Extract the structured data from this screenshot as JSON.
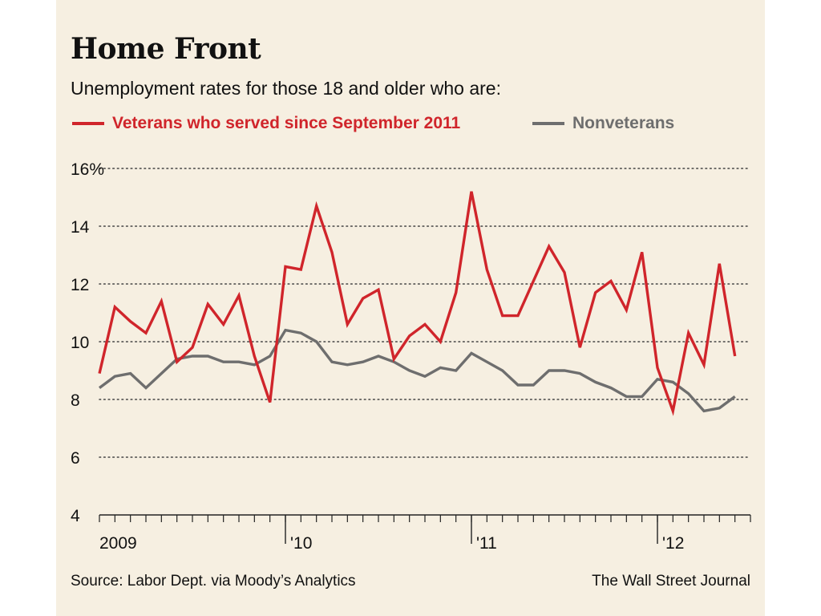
{
  "header": {
    "title": "Home Front",
    "subtitle": "Unemployment rates for those 18 and older who are:"
  },
  "footer": {
    "source": "Source: Labor Dept. via Moody’s Analytics",
    "credit": "The Wall Street Journal"
  },
  "colors": {
    "veterans": "#d0252b",
    "nonveterans": "#6e6e6e",
    "background": "#f6efe1"
  },
  "chart_data": {
    "type": "line",
    "title": "Home Front",
    "subtitle": "Unemployment rates for those 18 and older who are:",
    "x_unit": "month",
    "x_start": "2009-01",
    "x_end": "2012-07",
    "x_ticks": [
      {
        "date": "2009-01",
        "label": "2009"
      },
      {
        "date": "2010-01",
        "label": "'10"
      },
      {
        "date": "2011-01",
        "label": "'11"
      },
      {
        "date": "2012-01",
        "label": "'12"
      }
    ],
    "ylim": [
      4,
      16
    ],
    "y_ticks": [
      4,
      6,
      8,
      10,
      12,
      14,
      16
    ],
    "y_tick_labels": [
      "4",
      "6",
      "8",
      "10",
      "12",
      "14",
      "16%"
    ],
    "grid": "horizontal dotted",
    "legend": "top",
    "series": [
      {
        "name": "Veterans who served since September 2011",
        "color": "#d0252b",
        "values": [
          8.9,
          11.2,
          10.7,
          10.3,
          11.4,
          9.3,
          9.8,
          11.3,
          10.6,
          11.6,
          9.5,
          7.9,
          12.6,
          12.5,
          14.7,
          13.1,
          10.6,
          11.5,
          11.8,
          9.4,
          10.2,
          10.6,
          10.0,
          11.7,
          15.2,
          12.5,
          10.9,
          10.9,
          12.1,
          13.3,
          12.4,
          9.8,
          11.7,
          12.1,
          11.1,
          13.1,
          9.1,
          7.6,
          10.3,
          9.2,
          12.7,
          9.5
        ]
      },
      {
        "name": "Nonveterans",
        "color": "#6e6e6e",
        "values": [
          8.4,
          8.8,
          8.9,
          8.4,
          8.9,
          9.4,
          9.5,
          9.5,
          9.3,
          9.3,
          9.2,
          9.5,
          10.4,
          10.3,
          10.0,
          9.3,
          9.2,
          9.3,
          9.5,
          9.3,
          9.0,
          8.8,
          9.1,
          9.0,
          9.6,
          9.3,
          9.0,
          8.5,
          8.5,
          9.0,
          9.0,
          8.9,
          8.6,
          8.4,
          8.1,
          8.1,
          8.7,
          8.6,
          8.2,
          7.6,
          7.7,
          8.1
        ]
      }
    ]
  }
}
